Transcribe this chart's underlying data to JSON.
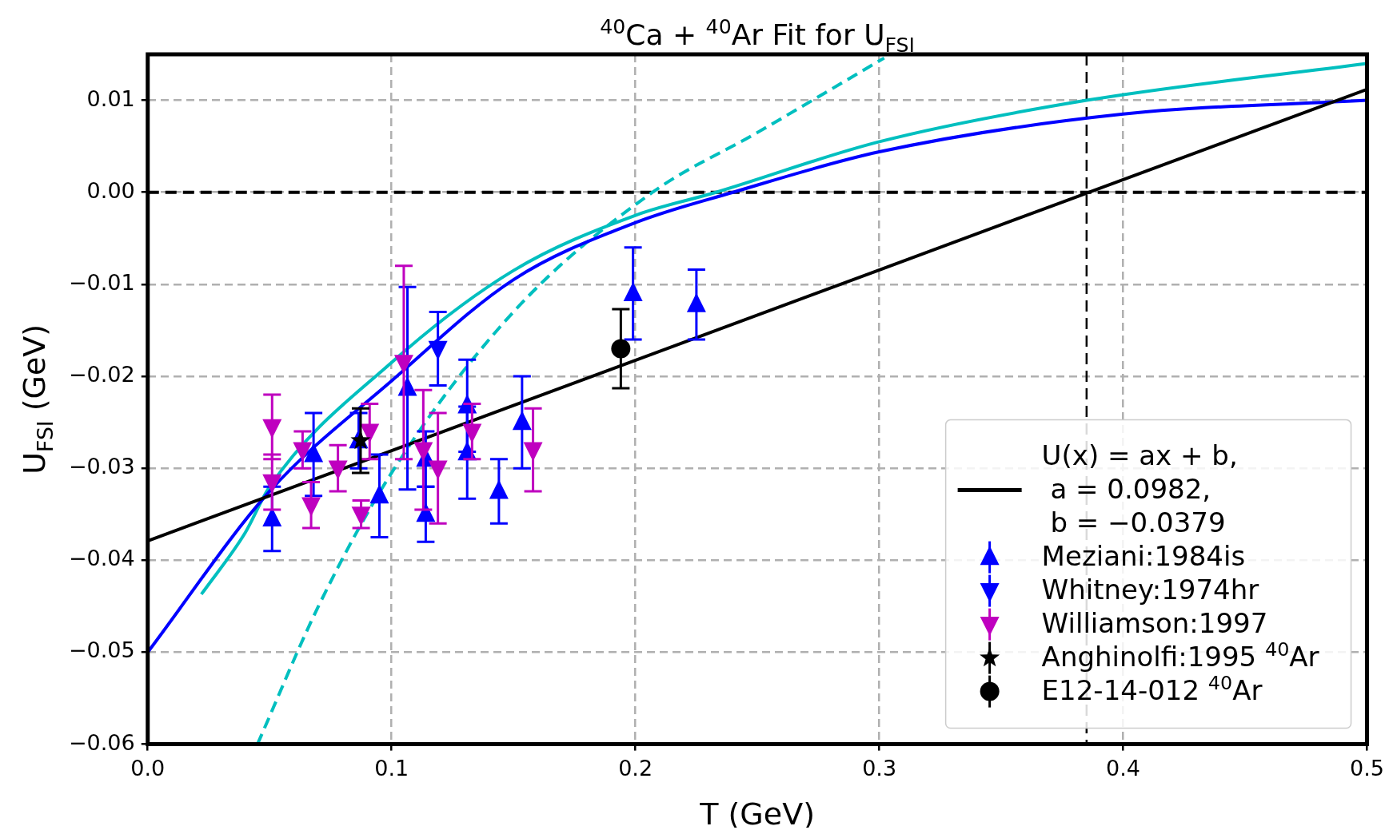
{
  "chart_data": {
    "type": "scatter",
    "title": "$^{40}$Ca + $^{40}$Ar Fit for U$_{FSI}$",
    "xlabel": "T (GeV)",
    "ylabel": "U$_{FSI}$ (GeV)",
    "xlim": [
      0,
      0.5
    ],
    "xticks": [
      {
        "value": 0,
        "label": "0.0"
      },
      {
        "value": 0.1,
        "label": "0.1"
      },
      {
        "value": 0.2,
        "label": "0.2"
      },
      {
        "value": 0.3,
        "label": "0.3"
      },
      {
        "value": 0.4,
        "label": "0.4"
      },
      {
        "value": 0.5,
        "label": "0.5"
      }
    ],
    "ylim": [
      -0.06,
      0.015
    ],
    "yticks": [
      {
        "value": -0.06,
        "label": "−0.06"
      },
      {
        "value": -0.05,
        "label": "−0.05"
      },
      {
        "value": -0.04,
        "label": "−0.04"
      },
      {
        "value": -0.03,
        "label": "−0.03"
      },
      {
        "value": -0.02,
        "label": "−0.02"
      },
      {
        "value": -0.01,
        "label": "−0.01"
      },
      {
        "value": 0,
        "label": "0.00"
      },
      {
        "value": 0.01,
        "label": "0.01"
      }
    ],
    "grid": true,
    "legend": "bottom right",
    "ref_lines": [
      {
        "axis": "y",
        "value": 0,
        "color": "#000000",
        "line_style": "dashed"
      },
      {
        "axis": "x",
        "value": 0.385,
        "color": "#000000",
        "line_style": "dashed"
      }
    ],
    "series": [
      {
        "type": "line",
        "name": "U(x) = ax + b,\n a = 0.0982,\n b = −0.0379",
        "color": "#000000",
        "line_style": "solid",
        "x": [
          0,
          0.5
        ],
        "values": [
          -0.0379,
          0.0112
        ]
      },
      {
        "type": "line",
        "color": "#0000ff",
        "line_style": "solid",
        "x": [
          0,
          0.05,
          0.1,
          0.15,
          0.2,
          0.24,
          0.3,
          0.4,
          0.5
        ],
        "values": [
          -0.05,
          -0.0325,
          -0.0205,
          -0.0095,
          -0.0033,
          0,
          0.0044,
          0.0085,
          0.01
        ]
      },
      {
        "type": "line",
        "color": "#00bfbf",
        "line_style": "solid",
        "x": [
          0.022,
          0.04,
          0.05,
          0.1,
          0.15,
          0.2,
          0.233,
          0.3,
          0.385,
          0.5
        ],
        "values": [
          -0.0437,
          -0.037,
          -0.032,
          -0.0185,
          -0.0085,
          -0.0025,
          0,
          0.0055,
          0.01,
          0.014
        ]
      },
      {
        "type": "line",
        "color": "#00bfbf",
        "line_style": "dashed",
        "x": [
          0.045,
          0.07,
          0.1,
          0.15,
          0.207,
          0.25,
          0.302
        ],
        "values": [
          -0.06,
          -0.045,
          -0.0305,
          -0.013,
          0,
          0.0065,
          0.0146
        ]
      },
      {
        "type": "scatter",
        "name": "Meziani:1984is",
        "color": "#0000ff",
        "marker": "triangle",
        "x": [
          0.051,
          0.068,
          0.0865,
          0.095,
          0.1065,
          0.114,
          0.114,
          0.131,
          0.131,
          0.144,
          0.1535,
          0.199,
          0.225
        ],
        "values": [
          -0.0355,
          -0.0285,
          -0.027,
          -0.033,
          -0.0213,
          -0.035,
          -0.029,
          -0.0283,
          -0.0232,
          -0.0325,
          -0.025,
          -0.011,
          -0.0122
        ],
        "errors": [
          0.0035,
          0.0045,
          0.003,
          0.0045,
          0.011,
          0.003,
          0.003,
          0.005,
          0.005,
          0.0035,
          0.005,
          0.005,
          0.0038
        ]
      },
      {
        "type": "scatter",
        "name": "Whitney:1974hr",
        "color": "#0000ff",
        "marker": "triangle-down",
        "x": [
          0.119
        ],
        "values": [
          -0.017
        ],
        "errors": [
          0.004
        ]
      },
      {
        "type": "scatter",
        "name": "Williamson:1997",
        "color": "#bf00bf",
        "marker": "triangle-down",
        "x": [
          0.051,
          0.051,
          0.0635,
          0.067,
          0.078,
          0.0875,
          0.091,
          0.105,
          0.113,
          0.119,
          0.133,
          0.158
        ],
        "values": [
          -0.0255,
          -0.0315,
          -0.028,
          -0.034,
          -0.03,
          -0.035,
          -0.026,
          -0.0185,
          -0.028,
          -0.03,
          -0.026,
          -0.028
        ],
        "errors": [
          0.0035,
          0.003,
          0.002,
          0.0025,
          0.0025,
          0.0015,
          0.003,
          0.0105,
          0.0065,
          0.006,
          0.003,
          0.0045
        ]
      },
      {
        "type": "scatter",
        "name": "Anghinolfi:1995 $^{40}$Ar",
        "color": "#000000",
        "marker": "star",
        "x": [
          0.0873
        ],
        "values": [
          -0.027
        ],
        "errors": [
          0.0035
        ]
      },
      {
        "type": "scatter",
        "name": "E12-14-012 $^{40}$Ar",
        "color": "#000000",
        "marker": "circle",
        "x": [
          0.194
        ],
        "values": [
          -0.017
        ],
        "errors": [
          0.0043
        ]
      }
    ]
  }
}
